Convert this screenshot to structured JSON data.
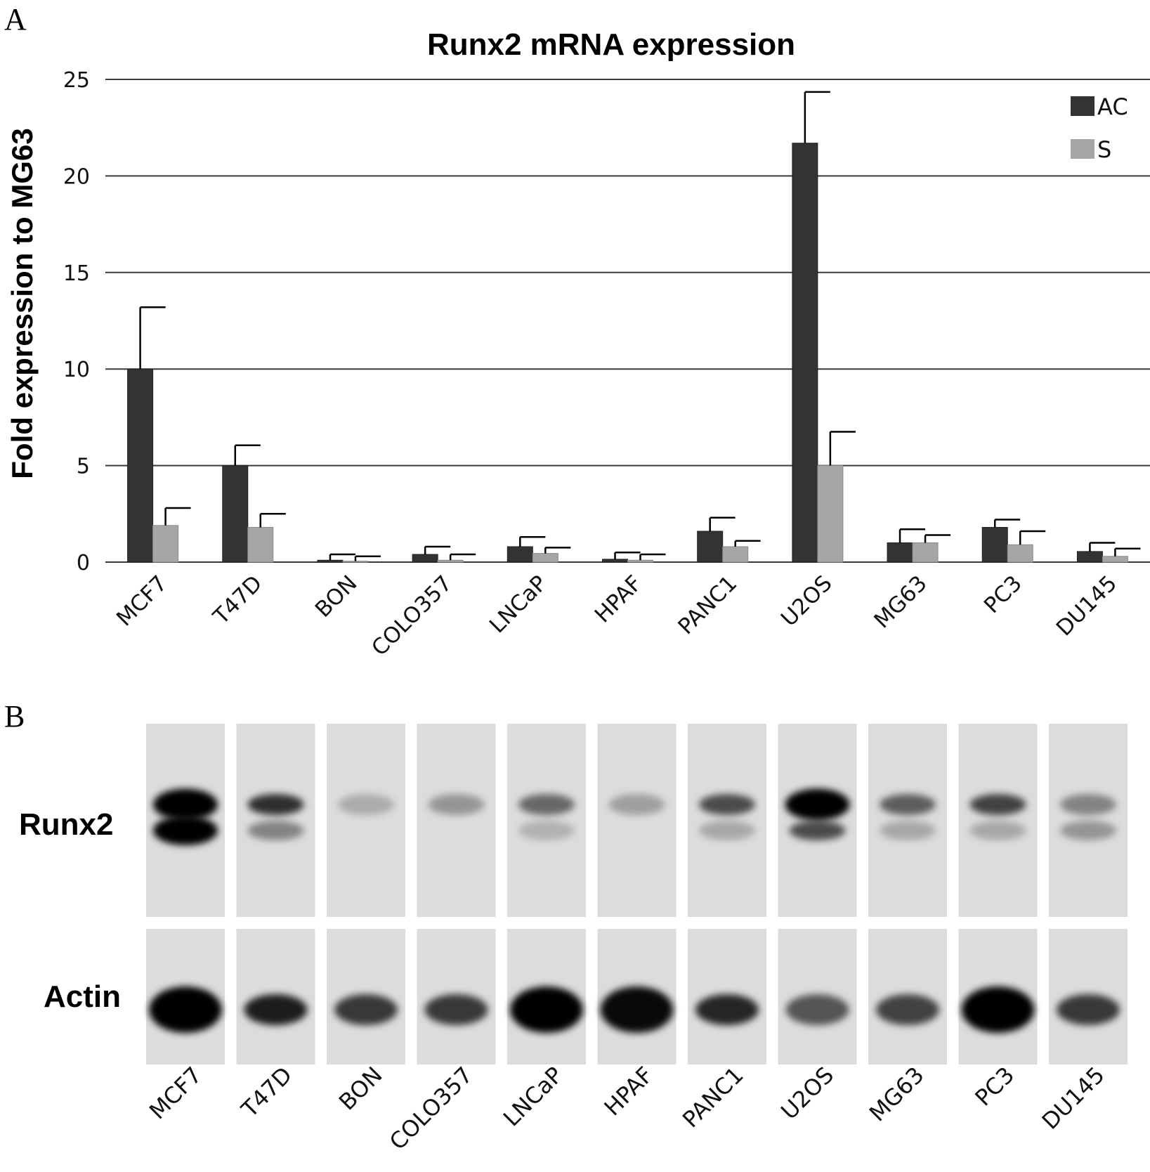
{
  "panel_a_letter": "A",
  "panel_b_letter": "B",
  "chart_data": {
    "type": "bar",
    "title": "Runx2 mRNA expression",
    "ylabel": "Fold expression to MG63",
    "xlabel": "",
    "ylim": [
      0,
      25
    ],
    "yticks": [
      0,
      5,
      10,
      15,
      20,
      25
    ],
    "grid": true,
    "legend_position": "top-right",
    "categories": [
      "MCF7",
      "T47D",
      "BON",
      "COLO357",
      "LNCaP",
      "HPAF",
      "PANC1",
      "U2OS",
      "MG63",
      "PC3",
      "DU145"
    ],
    "series": [
      {
        "name": "AC",
        "color": "#333333",
        "values": [
          10.0,
          5.0,
          0.1,
          0.4,
          0.8,
          0.15,
          1.6,
          21.7,
          1.0,
          1.8,
          0.55
        ],
        "errors": [
          3.2,
          1.05,
          0.3,
          0.4,
          0.5,
          0.35,
          0.7,
          2.65,
          0.7,
          0.4,
          0.45
        ]
      },
      {
        "name": "S",
        "color": "#a6a6a6",
        "values": [
          1.9,
          1.8,
          0.05,
          0.1,
          0.45,
          0.1,
          0.8,
          5.0,
          1.0,
          0.9,
          0.3
        ],
        "errors": [
          0.9,
          0.7,
          0.25,
          0.3,
          0.3,
          0.3,
          0.3,
          1.75,
          0.4,
          0.7,
          0.4
        ]
      }
    ]
  },
  "blot": {
    "rows": [
      {
        "label": "Runx2",
        "lanes": [
          {
            "upper": 1.0,
            "lower": 1.0
          },
          {
            "upper": 0.75,
            "lower": 0.3
          },
          {
            "upper": 0.08,
            "lower": 0.0
          },
          {
            "upper": 0.2,
            "lower": 0.0
          },
          {
            "upper": 0.45,
            "lower": 0.05
          },
          {
            "upper": 0.15,
            "lower": 0.0
          },
          {
            "upper": 0.6,
            "lower": 0.1
          },
          {
            "upper": 1.0,
            "lower": 0.6
          },
          {
            "upper": 0.5,
            "lower": 0.1
          },
          {
            "upper": 0.65,
            "lower": 0.1
          },
          {
            "upper": 0.3,
            "lower": 0.2
          }
        ]
      },
      {
        "label": "Actin",
        "lanes": [
          {
            "upper": 1.0
          },
          {
            "upper": 0.85
          },
          {
            "upper": 0.7
          },
          {
            "upper": 0.7
          },
          {
            "upper": 1.0
          },
          {
            "upper": 0.95
          },
          {
            "upper": 0.8
          },
          {
            "upper": 0.55
          },
          {
            "upper": 0.65
          },
          {
            "upper": 1.0
          },
          {
            "upper": 0.7
          }
        ]
      }
    ],
    "lane_labels": [
      "MCF7",
      "T47D",
      "BON",
      "COLO357",
      "LNCaP",
      "HPAF",
      "PANC1",
      "U2OS",
      "MG63",
      "PC3",
      "DU145"
    ]
  }
}
